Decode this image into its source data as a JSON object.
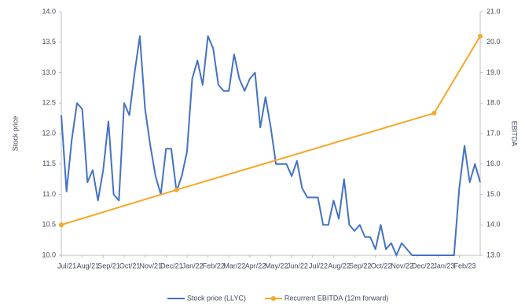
{
  "chart_data": {
    "type": "line",
    "y_label": "Stock price",
    "y2_label": "EBITDA",
    "xlim": [
      0,
      20
    ],
    "xticks": [
      {
        "value": 0,
        "label": "Jul/21"
      },
      {
        "value": 1,
        "label": "Aug/21"
      },
      {
        "value": 2,
        "label": "Sep/21"
      },
      {
        "value": 3,
        "label": "Oct/21"
      },
      {
        "value": 4,
        "label": "Nov/21"
      },
      {
        "value": 5,
        "label": "Dec/21"
      },
      {
        "value": 6,
        "label": "Jan/22"
      },
      {
        "value": 7,
        "label": "Feb/22"
      },
      {
        "value": 8,
        "label": "Mar/22"
      },
      {
        "value": 9,
        "label": "Apr/22"
      },
      {
        "value": 10,
        "label": "May/22"
      },
      {
        "value": 11,
        "label": "Jun/22"
      },
      {
        "value": 12,
        "label": "Jul/22"
      },
      {
        "value": 13,
        "label": "Aug/22"
      },
      {
        "value": 14,
        "label": "Sep/22"
      },
      {
        "value": 15,
        "label": "Oct/22"
      },
      {
        "value": 16,
        "label": "Nov/22"
      },
      {
        "value": 17,
        "label": "Dec/22"
      },
      {
        "value": 18,
        "label": "Jan/23"
      },
      {
        "value": 19,
        "label": "Feb/23"
      }
    ],
    "ylim": [
      10,
      14
    ],
    "yticks": [
      {
        "value": 10,
        "label": "10.0"
      },
      {
        "value": 10.5,
        "label": "10.5"
      },
      {
        "value": 11,
        "label": "11.0"
      },
      {
        "value": 11.5,
        "label": "11.5"
      },
      {
        "value": 12,
        "label": "12.0"
      },
      {
        "value": 12.5,
        "label": "12.5"
      },
      {
        "value": 13,
        "label": "13.0"
      },
      {
        "value": 13.5,
        "label": "13.5"
      },
      {
        "value": 14,
        "label": "14.0"
      }
    ],
    "y2lim": [
      13,
      21
    ],
    "y2ticks": [
      {
        "value": 13,
        "label": "13.0"
      },
      {
        "value": 14,
        "label": "14.0"
      },
      {
        "value": 15,
        "label": "15.0"
      },
      {
        "value": 16,
        "label": "16.0"
      },
      {
        "value": 17,
        "label": "17.0"
      },
      {
        "value": 18,
        "label": "18.0"
      },
      {
        "value": 19,
        "label": "19.0"
      },
      {
        "value": 20,
        "label": "20.0"
      },
      {
        "value": 21,
        "label": "21.0"
      }
    ],
    "series": [
      {
        "name": "Stock price (LLYC)",
        "color": "#4472c4",
        "markers": false,
        "x": [
          0,
          0.25,
          0.5,
          0.75,
          1,
          1.25,
          1.5,
          1.75,
          2,
          2.25,
          2.5,
          2.75,
          3,
          3.25,
          3.5,
          3.75,
          4,
          4.25,
          4.5,
          4.75,
          5,
          5.25,
          5.5,
          5.75,
          6,
          6.25,
          6.5,
          6.75,
          7,
          7.25,
          7.5,
          7.75,
          8,
          8.25,
          8.5,
          8.75,
          9,
          9.25,
          9.5,
          9.75,
          10,
          10.25,
          10.5,
          10.75,
          11,
          11.25,
          11.5,
          11.75,
          12,
          12.25,
          12.5,
          12.75,
          13,
          13.25,
          13.5,
          13.75,
          14,
          14.25,
          14.5,
          14.75,
          15,
          15.25,
          15.5,
          15.75,
          16,
          16.25,
          16.5,
          16.75,
          17,
          17.25,
          17.5,
          17.75,
          18,
          18.25,
          18.5,
          18.75,
          19,
          19.25,
          19.5,
          19.75,
          20
        ],
        "values": [
          12.3,
          11.05,
          11.9,
          12.5,
          12.4,
          11.2,
          11.4,
          10.9,
          11.4,
          12.2,
          11.0,
          10.9,
          12.5,
          12.3,
          13.0,
          13.6,
          12.4,
          11.8,
          11.3,
          11.0,
          11.75,
          11.75,
          11.05,
          11.3,
          11.7,
          12.9,
          13.2,
          12.8,
          13.6,
          13.4,
          12.8,
          12.7,
          12.7,
          13.3,
          12.9,
          12.7,
          12.9,
          13.0,
          12.1,
          12.6,
          12.1,
          11.5,
          11.5,
          11.5,
          11.3,
          11.55,
          11.1,
          10.95,
          10.95,
          10.95,
          10.5,
          10.5,
          10.9,
          10.6,
          11.25,
          10.5,
          10.4,
          10.5,
          10.3,
          10.3,
          10.1,
          10.5,
          10.1,
          10.2,
          10.0,
          10.2,
          10.1,
          10.0,
          10.0,
          10.0,
          10.0,
          10.0,
          10.0,
          10.0,
          10.0,
          10.0,
          11.1,
          11.8,
          11.2,
          11.5,
          11.2
        ]
      },
      {
        "name": "Recurrent EBITDA (12m forward)",
        "color": "#f5a829",
        "axis": "y2",
        "markers": true,
        "x": [
          0,
          5.5,
          17.8,
          20
        ],
        "values": [
          14.0,
          15.15,
          17.67,
          20.2
        ]
      }
    ],
    "legend": "bottom"
  }
}
